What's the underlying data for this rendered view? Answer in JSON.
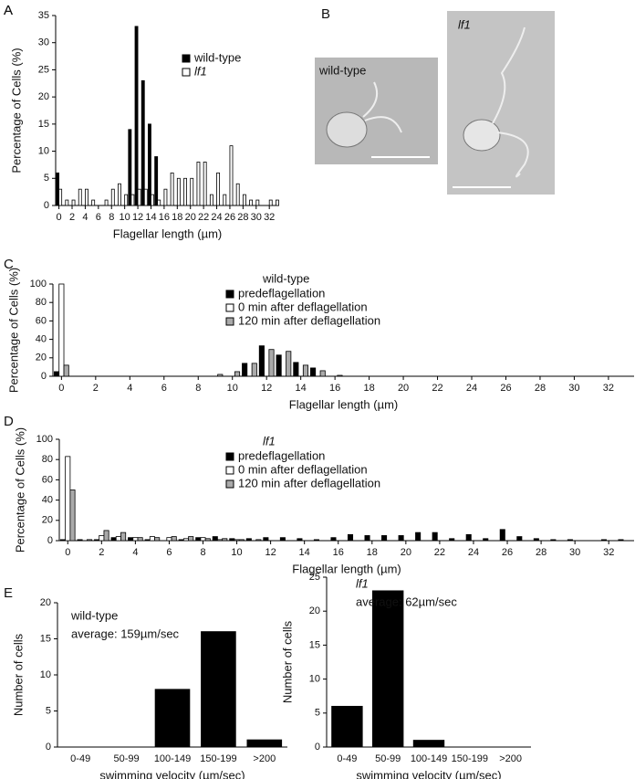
{
  "chart_data": [
    {
      "type": "bar",
      "panel": "A",
      "xlabel": "Flagellar length (µm)",
      "ylabel": "Percentage of Cells (%)",
      "x": [
        0,
        1,
        2,
        3,
        4,
        5,
        6,
        7,
        8,
        9,
        10,
        11,
        12,
        13,
        14,
        15,
        16,
        17,
        18,
        19,
        20,
        21,
        22,
        23,
        24,
        25,
        26,
        27,
        28,
        29,
        30,
        31,
        32,
        33
      ],
      "xlim": [
        -0.5,
        33.5
      ],
      "xticks": [
        0,
        2,
        4,
        6,
        8,
        10,
        12,
        14,
        16,
        18,
        20,
        22,
        24,
        26,
        28,
        30,
        32
      ],
      "ylim": [
        0,
        35
      ],
      "yticks": [
        0,
        5,
        10,
        15,
        20,
        25,
        30,
        35
      ],
      "series": [
        {
          "name": "wild-type",
          "color": "#000000",
          "values": [
            6,
            0,
            0,
            0,
            0,
            0,
            0,
            0,
            0,
            0,
            0,
            14,
            33,
            23,
            15,
            9,
            0,
            0,
            0,
            0,
            0,
            0,
            0,
            0,
            0,
            0,
            0,
            0,
            0,
            0,
            0,
            0,
            0,
            0
          ]
        },
        {
          "name": "lf1",
          "color": "#ffffff",
          "values": [
            3,
            1,
            1,
            3,
            3,
            1,
            0,
            1,
            3,
            4,
            2,
            2,
            3,
            3,
            2,
            1,
            3,
            6,
            5,
            5,
            5,
            8,
            8,
            2,
            6,
            2,
            11,
            4,
            2,
            1,
            1,
            0,
            1,
            1
          ]
        }
      ]
    },
    {
      "type": "bar",
      "panel": "C",
      "legend_title": "wild-type",
      "xlabel": "Flagellar length (µm)",
      "ylabel": "Percentage of Cells (%)",
      "x": [
        0,
        1,
        2,
        3,
        4,
        5,
        6,
        7,
        8,
        9,
        10,
        11,
        12,
        13,
        14,
        15,
        16,
        17,
        18,
        19,
        20,
        21,
        22,
        23,
        24,
        25,
        26,
        27,
        28,
        29,
        30,
        31,
        32,
        33
      ],
      "xlim": [
        -0.5,
        33.5
      ],
      "xticks": [
        0,
        2,
        4,
        6,
        8,
        10,
        12,
        14,
        16,
        18,
        20,
        22,
        24,
        26,
        28,
        30,
        32
      ],
      "ylim": [
        0,
        100
      ],
      "yticks": [
        0,
        20,
        40,
        60,
        80,
        100
      ],
      "series": [
        {
          "name": "predeflagellation",
          "color": "#000000",
          "values": [
            5,
            0,
            0,
            0,
            0,
            0,
            0,
            0,
            0,
            0,
            0,
            14,
            33,
            23,
            15,
            9,
            0,
            0,
            0,
            0,
            0,
            0,
            0,
            0,
            0,
            0,
            0,
            0,
            0,
            0,
            0,
            0,
            0,
            0
          ]
        },
        {
          "name": "0 min after deflagellation",
          "color": "#ffffff",
          "values": [
            100,
            0,
            0,
            0,
            0,
            0,
            0,
            0,
            0,
            0,
            0,
            0,
            0,
            0,
            0,
            0,
            0,
            0,
            0,
            0,
            0,
            0,
            0,
            0,
            0,
            0,
            0,
            0,
            0,
            0,
            0,
            0,
            0,
            0
          ]
        },
        {
          "name": "120 min after deflagellation",
          "color": "#aaaaaa",
          "values": [
            12,
            0,
            0,
            0,
            0,
            0,
            0,
            0,
            0,
            2,
            5,
            14,
            29,
            27,
            12,
            6,
            1,
            0,
            0,
            0,
            0,
            0,
            0,
            0,
            0,
            0,
            0,
            0,
            0,
            0,
            0,
            0,
            0,
            0
          ]
        }
      ]
    },
    {
      "type": "bar",
      "panel": "D",
      "legend_title": "lf1",
      "xlabel": "Flagellar length (µm)",
      "ylabel": "Percentage of Cells (%)",
      "x": [
        0,
        1,
        2,
        3,
        4,
        5,
        6,
        7,
        8,
        9,
        10,
        11,
        12,
        13,
        14,
        15,
        16,
        17,
        18,
        19,
        20,
        21,
        22,
        23,
        24,
        25,
        26,
        27,
        28,
        29,
        30,
        31,
        32,
        33
      ],
      "xlim": [
        -0.5,
        33.5
      ],
      "xticks": [
        0,
        2,
        4,
        6,
        8,
        10,
        12,
        14,
        16,
        18,
        20,
        22,
        24,
        26,
        28,
        30,
        32
      ],
      "ylim": [
        0,
        100
      ],
      "yticks": [
        0,
        20,
        40,
        60,
        80,
        100
      ],
      "series": [
        {
          "name": "predeflagellation",
          "color": "#000000",
          "values": [
            1,
            1,
            1,
            3,
            3,
            1,
            0,
            1,
            3,
            4,
            2,
            2,
            3,
            3,
            2,
            1,
            3,
            6,
            5,
            5,
            5,
            8,
            8,
            2,
            6,
            2,
            11,
            4,
            2,
            1,
            1,
            0,
            1,
            1
          ]
        },
        {
          "name": "0 min after deflagellation",
          "color": "#ffffff",
          "values": [
            83,
            0,
            5,
            4,
            3,
            4,
            3,
            2,
            3,
            1,
            1,
            0,
            0,
            0,
            0,
            0,
            0,
            0,
            0,
            0,
            0,
            0,
            0,
            0,
            0,
            0,
            0,
            0,
            0,
            0,
            0,
            0,
            0,
            0
          ]
        },
        {
          "name": "120 min after deflagellation",
          "color": "#aaaaaa",
          "values": [
            50,
            1,
            10,
            8,
            3,
            3,
            4,
            4,
            2,
            2,
            1,
            1,
            0,
            0,
            0,
            0,
            0,
            0,
            0,
            0,
            0,
            0,
            0,
            0,
            0,
            0,
            0,
            0,
            0,
            0,
            0,
            0,
            0,
            0
          ]
        }
      ]
    },
    {
      "type": "bar",
      "panel": "E",
      "annotations": [
        "wild-type",
        "average: 159µm/sec"
      ],
      "xlabel": "swimming velocity (µm/sec)",
      "ylabel": "Number of cells",
      "categories": [
        "0-49",
        "50-99",
        "100-149",
        "150-199",
        ">200"
      ],
      "values": [
        0,
        0,
        8,
        16,
        1
      ],
      "color": "#000000",
      "ylim": [
        0,
        20
      ],
      "yticks": [
        0,
        5,
        10,
        15,
        20
      ]
    },
    {
      "type": "bar",
      "annotations": [
        "lf1",
        "average: 62µm/sec"
      ],
      "xlabel": "swimming velocity (µm/sec)",
      "ylabel": "Number of cells",
      "categories": [
        "0-49",
        "50-99",
        "100-149",
        "150-199",
        ">200"
      ],
      "values": [
        6,
        23,
        1,
        0,
        0
      ],
      "color": "#000000",
      "ylim": [
        0,
        25
      ],
      "yticks": [
        0,
        5,
        10,
        15,
        20,
        25
      ]
    }
  ],
  "images": {
    "panel": "B",
    "labels": [
      "wild-type",
      "lf1"
    ]
  }
}
